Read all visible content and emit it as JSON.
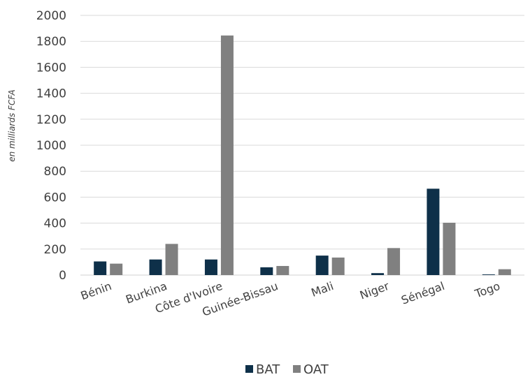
{
  "chart_data": {
    "type": "bar",
    "ylabel": "en milliards FCFA",
    "ylim": [
      0,
      2000
    ],
    "yticks": [
      0,
      200,
      400,
      600,
      800,
      1000,
      1200,
      1400,
      1600,
      1800,
      2000
    ],
    "grid": true,
    "legend": "bottom",
    "categories": [
      "Bénin",
      "Burkina",
      "Côte d'Ivoire",
      "Guinée-Bissau",
      "Mali",
      "Niger",
      "Sénégal",
      "Togo"
    ],
    "series": [
      {
        "name": "BAT",
        "color": "#0e3049",
        "values": [
          105,
          120,
          120,
          60,
          150,
          15,
          665,
          5
        ]
      },
      {
        "name": "OAT",
        "color": "#808080",
        "values": [
          88,
          240,
          1845,
          70,
          135,
          208,
          403,
          45
        ]
      }
    ]
  }
}
